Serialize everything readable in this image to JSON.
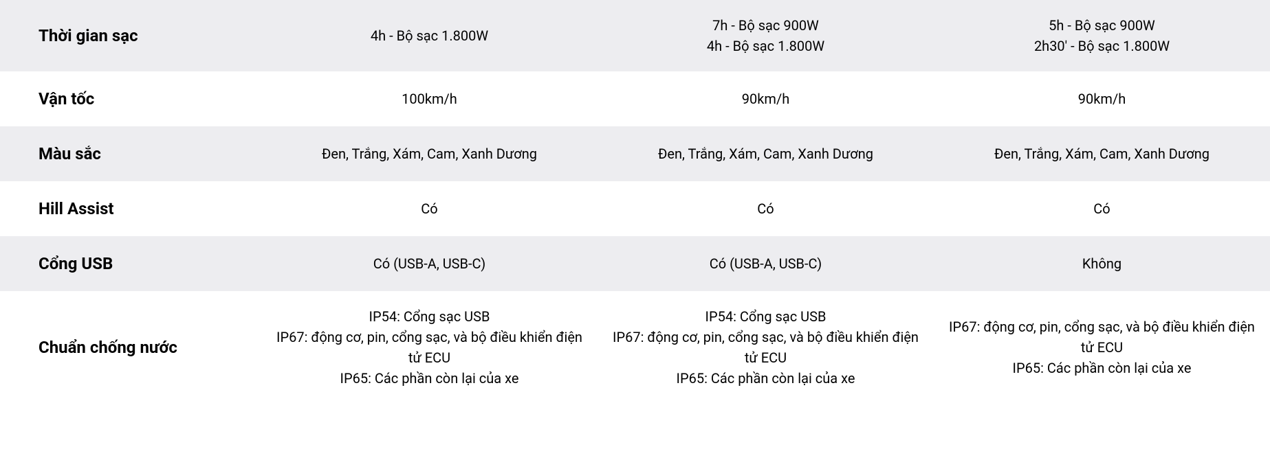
{
  "table": {
    "columns": [
      "label",
      "col1",
      "col2",
      "col3"
    ],
    "column_widths": {
      "label": 380
    },
    "row_background_colors": {
      "alt": "#ededf0",
      "white": "#ffffff"
    },
    "label_fontsize": 24,
    "label_fontweight": 700,
    "value_fontsize": 20,
    "text_color": "#000000",
    "rows": [
      {
        "bg": "alt",
        "label": "Thời gian sạc",
        "col1": [
          "4h - Bộ sạc 1.800W"
        ],
        "col2": [
          "7h - Bộ sạc 900W",
          "4h - Bộ sạc 1.800W"
        ],
        "col3": [
          "5h - Bộ sạc 900W",
          "2h30' - Bộ sạc 1.800W"
        ]
      },
      {
        "bg": "white",
        "label": "Vận tốc",
        "col1": [
          "100km/h"
        ],
        "col2": [
          "90km/h"
        ],
        "col3": [
          "90km/h"
        ]
      },
      {
        "bg": "alt",
        "label": "Màu sắc",
        "col1": [
          "Đen, Trắng, Xám, Cam, Xanh Dương"
        ],
        "col2": [
          "Đen, Trắng, Xám, Cam, Xanh Dương"
        ],
        "col3": [
          "Đen, Trắng, Xám, Cam, Xanh Dương"
        ]
      },
      {
        "bg": "white",
        "label": "Hill Assist",
        "col1": [
          "Có"
        ],
        "col2": [
          "Có"
        ],
        "col3": [
          "Có"
        ]
      },
      {
        "bg": "alt",
        "label": "Cổng USB",
        "col1": [
          "Có (USB-A, USB-C)"
        ],
        "col2": [
          "Có (USB-A, USB-C)"
        ],
        "col3": [
          "Không"
        ]
      },
      {
        "bg": "white",
        "label": "Chuẩn chống nước",
        "col1": [
          "IP54: Cổng sạc USB",
          "IP67: động cơ, pin, cổng sạc, và bộ điều khiển điện tử ECU",
          "IP65: Các phần còn lại của xe"
        ],
        "col2": [
          "IP54: Cổng sạc USB",
          "IP67: động cơ, pin, cổng sạc, và bộ điều khiển điện tử ECU",
          "IP65: Các phần còn lại của xe"
        ],
        "col3": [
          "IP67: động cơ, pin, cổng sạc, và bộ điều khiển điện tử ECU",
          "IP65: Các phần còn lại của xe"
        ]
      }
    ]
  }
}
